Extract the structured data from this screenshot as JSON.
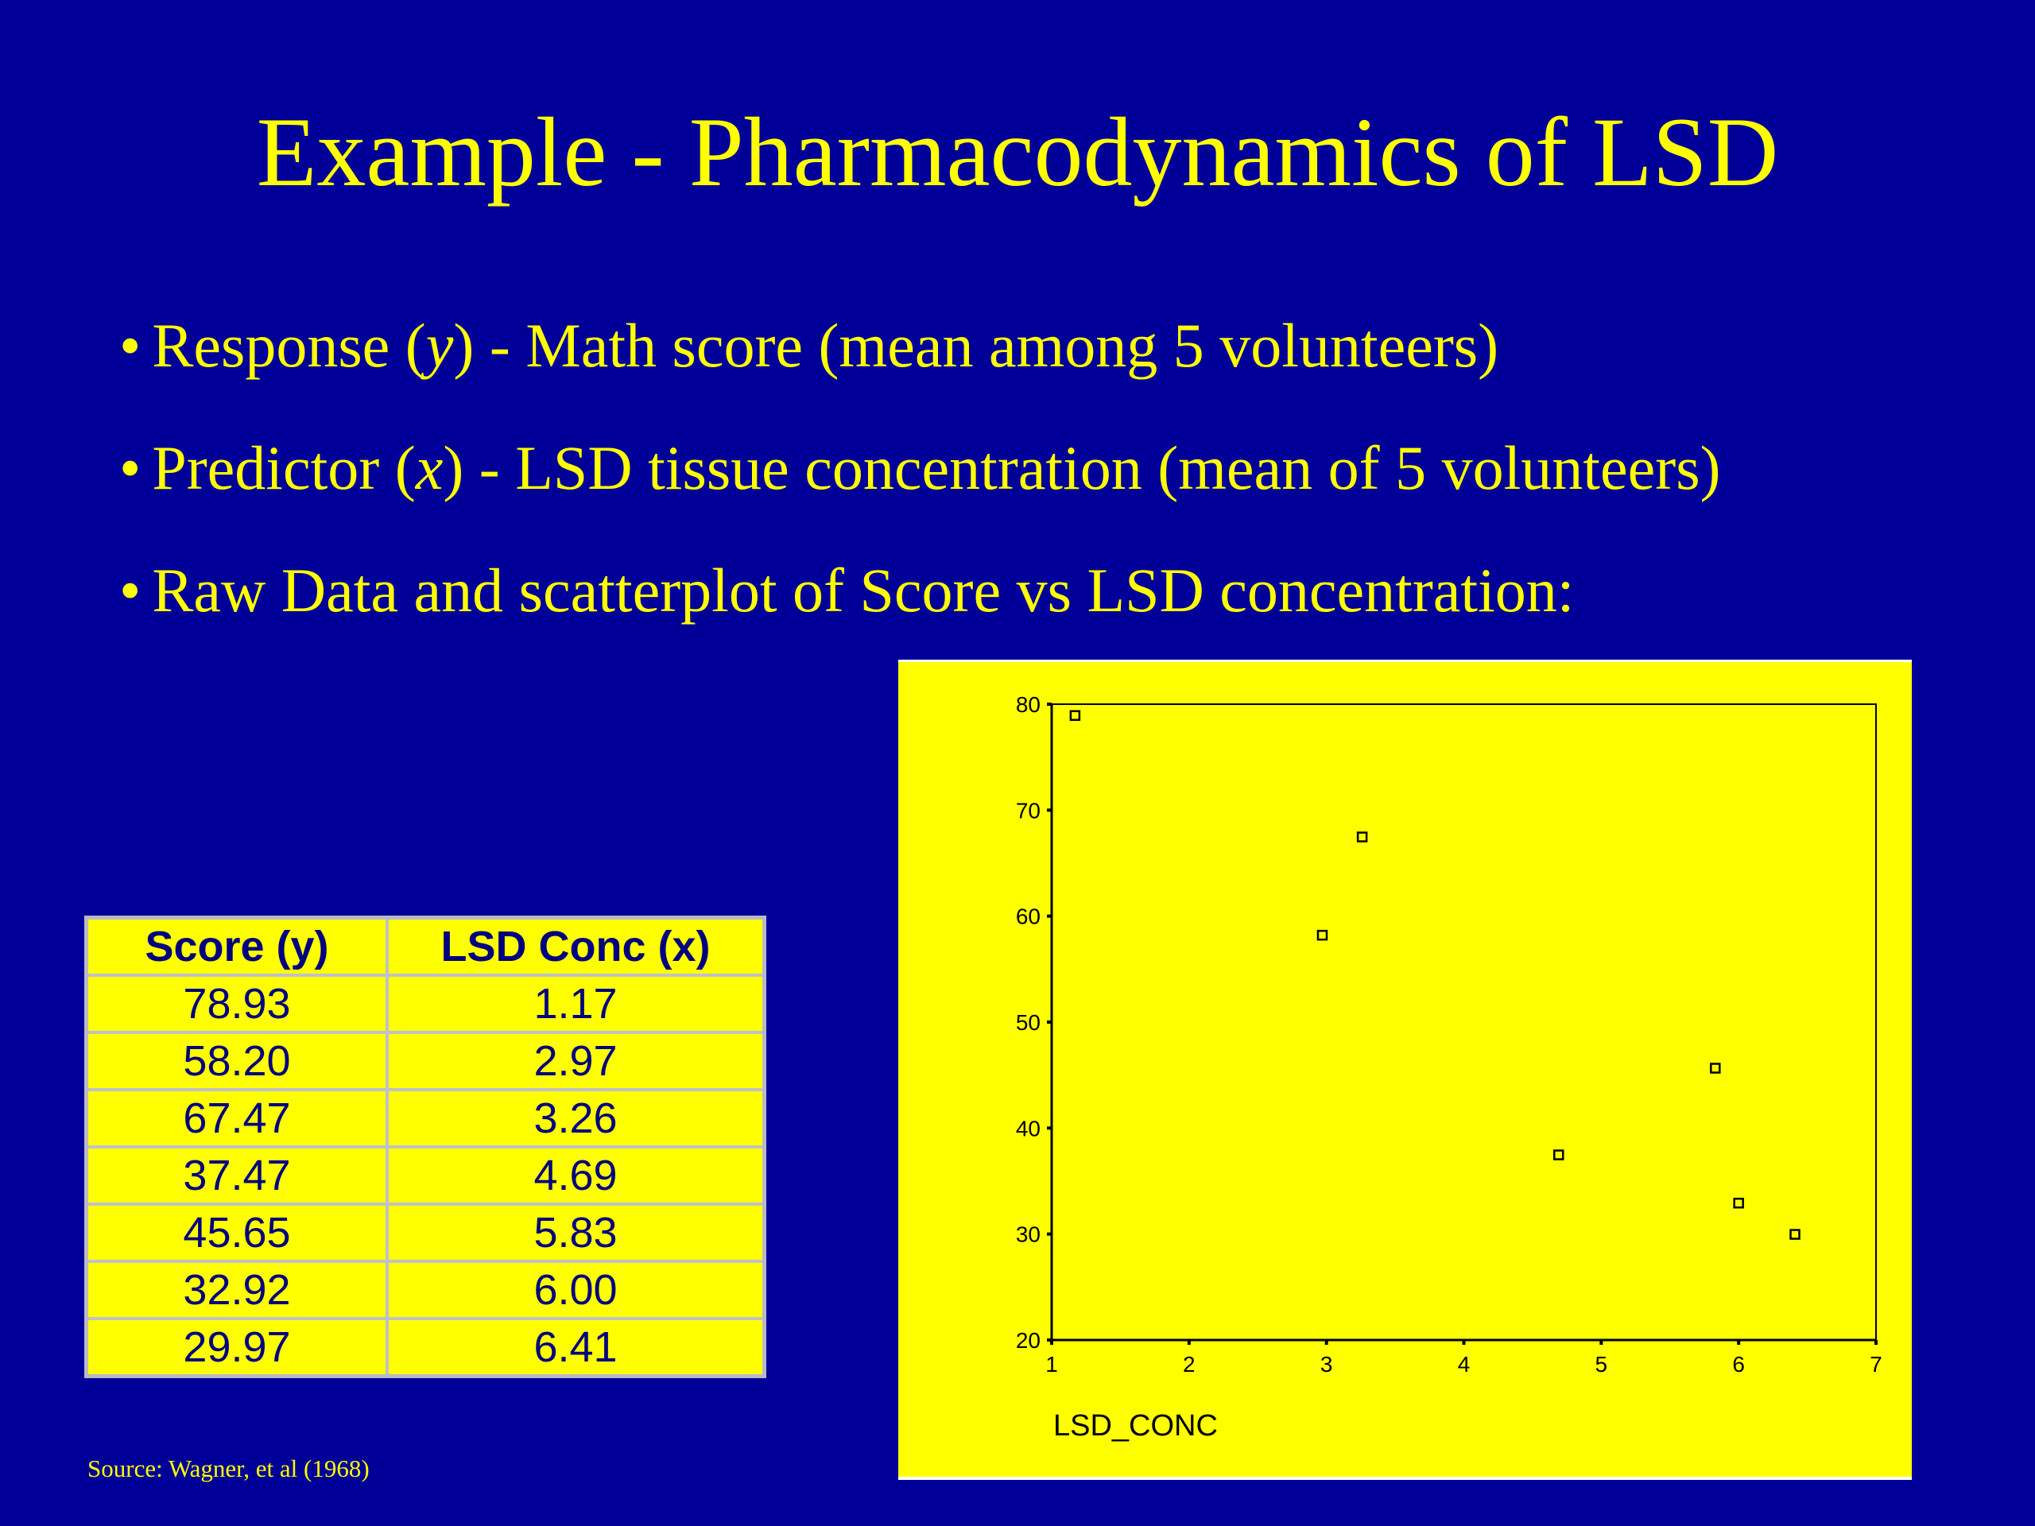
{
  "slide": {
    "title": "Example - Pharmacodynamics of LSD",
    "bullets": [
      {
        "pre": "Response (",
        "var": "y",
        "post": ") - Math score (mean among 5 volunteers)"
      },
      {
        "pre": "Predictor (",
        "var": "x",
        "post": ") - LSD tissue concentration (mean of 5 volunteers)"
      },
      {
        "pre": "Raw Data and scatterplot of Score vs LSD concentration:",
        "var": "",
        "post": ""
      }
    ],
    "bullet_char": "•",
    "source": "Source: Wagner, et al (1968)"
  },
  "table": {
    "headers": [
      "Score (y)",
      "LSD Conc (x)"
    ],
    "rows": [
      [
        "78.93",
        "1.17"
      ],
      [
        "58.20",
        "2.97"
      ],
      [
        "67.47",
        "3.26"
      ],
      [
        "37.47",
        "4.69"
      ],
      [
        "45.65",
        "5.83"
      ],
      [
        "32.92",
        "6.00"
      ],
      [
        "29.97",
        "6.41"
      ]
    ]
  },
  "chart_data": {
    "type": "scatter",
    "title": "",
    "xlabel": "LSD_CONC",
    "ylabel": "",
    "xlim": [
      1,
      7
    ],
    "ylim": [
      20,
      80
    ],
    "xticks": [
      1,
      2,
      3,
      4,
      5,
      6,
      7
    ],
    "yticks": [
      20,
      30,
      40,
      50,
      60,
      70,
      80
    ],
    "grid": false,
    "points": [
      {
        "x": 1.17,
        "y": 78.93
      },
      {
        "x": 2.97,
        "y": 58.2
      },
      {
        "x": 3.26,
        "y": 67.47
      },
      {
        "x": 4.69,
        "y": 37.47
      },
      {
        "x": 5.83,
        "y": 45.65
      },
      {
        "x": 6.0,
        "y": 32.92
      },
      {
        "x": 6.41,
        "y": 29.97
      }
    ],
    "colors": {
      "background": "#ffff00",
      "marker": "#000000",
      "axis": "#000000"
    }
  },
  "colors": {
    "slide_background": "#000099",
    "text": "#ffff00",
    "table_text": "#000080"
  }
}
